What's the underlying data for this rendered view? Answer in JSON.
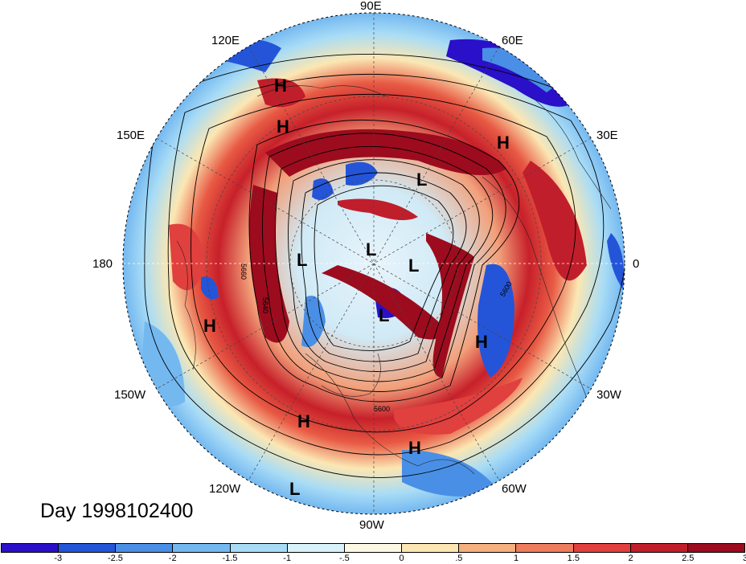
{
  "title": "Day 1998102400",
  "lon_labels": {
    "e90": "90E",
    "e60": "60E",
    "e30": "30E",
    "e0": "0",
    "w30": "30W",
    "w60": "60W",
    "w90": "90W",
    "w120": "120W",
    "w150": "150W",
    "d180": "180",
    "e150": "150E",
    "e120": "120E"
  },
  "pressure_centers": [
    {
      "label": "H"
    },
    {
      "label": "H"
    },
    {
      "label": "H"
    },
    {
      "label": "H"
    },
    {
      "label": "H"
    },
    {
      "label": "H"
    },
    {
      "label": "H"
    },
    {
      "label": "L"
    },
    {
      "label": "L"
    },
    {
      "label": "L"
    },
    {
      "label": "L"
    },
    {
      "label": "L"
    },
    {
      "label": "L"
    }
  ],
  "contour_labels": [
    "5660",
    "5640",
    "5600",
    "5600"
  ],
  "colorbar": {
    "colors": [
      "#2a10c8",
      "#2455d8",
      "#4a8fe6",
      "#74b8f0",
      "#a8dcf6",
      "#d8f2fa",
      "#fdf8e4",
      "#fbe7b3",
      "#f4b07e",
      "#ee7c5f",
      "#e0403e",
      "#c11e2c",
      "#9c0c1e"
    ],
    "ticks": [
      "-3",
      "-2.5",
      "-2",
      "-1.5",
      "-1",
      "-.5",
      "0",
      ".5",
      "1",
      "1.5",
      "2",
      "2.5",
      "3"
    ]
  }
}
